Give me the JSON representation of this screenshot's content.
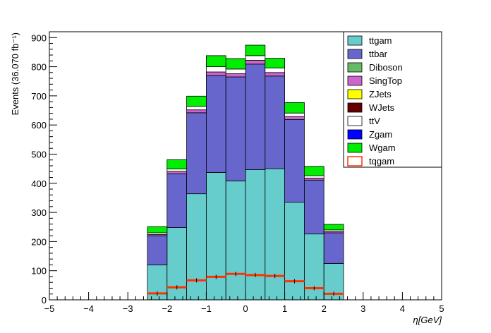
{
  "chart_data": {
    "type": "bar",
    "stacked": true,
    "xlabel": "η[GeV]",
    "ylabel": "Events (36.070 fb⁻¹)",
    "xlim": [
      -5,
      5
    ],
    "ylim": [
      0,
      920
    ],
    "x_ticks": [
      "−5",
      "−4",
      "−3",
      "−2",
      "−1",
      "0",
      "1",
      "2",
      "3",
      "4",
      "5"
    ],
    "y_ticks": [
      "0",
      "100",
      "200",
      "300",
      "400",
      "500",
      "600",
      "700",
      "800",
      "900"
    ],
    "bin_edges": [
      -2.5,
      -2.0,
      -1.5,
      -1.0,
      -0.5,
      0.0,
      0.5,
      1.0,
      1.5,
      2.0,
      2.5
    ],
    "legend_position": "top-right",
    "series": [
      {
        "name": "ttgam",
        "color": "#66cccc",
        "values": [
          120,
          248,
          364,
          437,
          408,
          447,
          450,
          335,
          226,
          125
        ]
      },
      {
        "name": "ttbar",
        "color": "#6666cc",
        "values": [
          100,
          185,
          278,
          333,
          357,
          362,
          318,
          284,
          185,
          105
        ]
      },
      {
        "name": "Diboson",
        "color": "#66bb66",
        "values": [
          0,
          0,
          0,
          0,
          0,
          0,
          0,
          0,
          0,
          0
        ]
      },
      {
        "name": "SingTop",
        "color": "#cc66cc",
        "values": [
          4,
          8,
          10,
          12,
          11,
          13,
          12,
          10,
          7,
          4
        ]
      },
      {
        "name": "ZJets",
        "color": "#ffff00",
        "values": [
          0,
          0,
          0,
          0,
          0,
          0,
          0,
          0,
          0,
          0
        ]
      },
      {
        "name": "WJets",
        "color": "#660000",
        "values": [
          0,
          0,
          0,
          0,
          0,
          0,
          0,
          0,
          0,
          0
        ]
      },
      {
        "name": "ttV",
        "color": "#ffffff",
        "values": [
          6,
          8,
          12,
          18,
          16,
          16,
          16,
          12,
          8,
          6
        ]
      },
      {
        "name": "Zgam",
        "color": "#0000ff",
        "values": [
          0,
          0,
          0,
          0,
          0,
          0,
          0,
          0,
          0,
          0
        ]
      },
      {
        "name": "Wgam",
        "color": "#00ee00",
        "values": [
          21,
          32,
          35,
          38,
          36,
          36,
          33,
          36,
          32,
          19
        ]
      },
      {
        "name": "tqgam",
        "color": "#ff3300",
        "style": "line",
        "values": [
          22,
          43,
          67,
          79,
          89,
          85,
          82,
          64,
          40,
          21
        ]
      }
    ]
  }
}
